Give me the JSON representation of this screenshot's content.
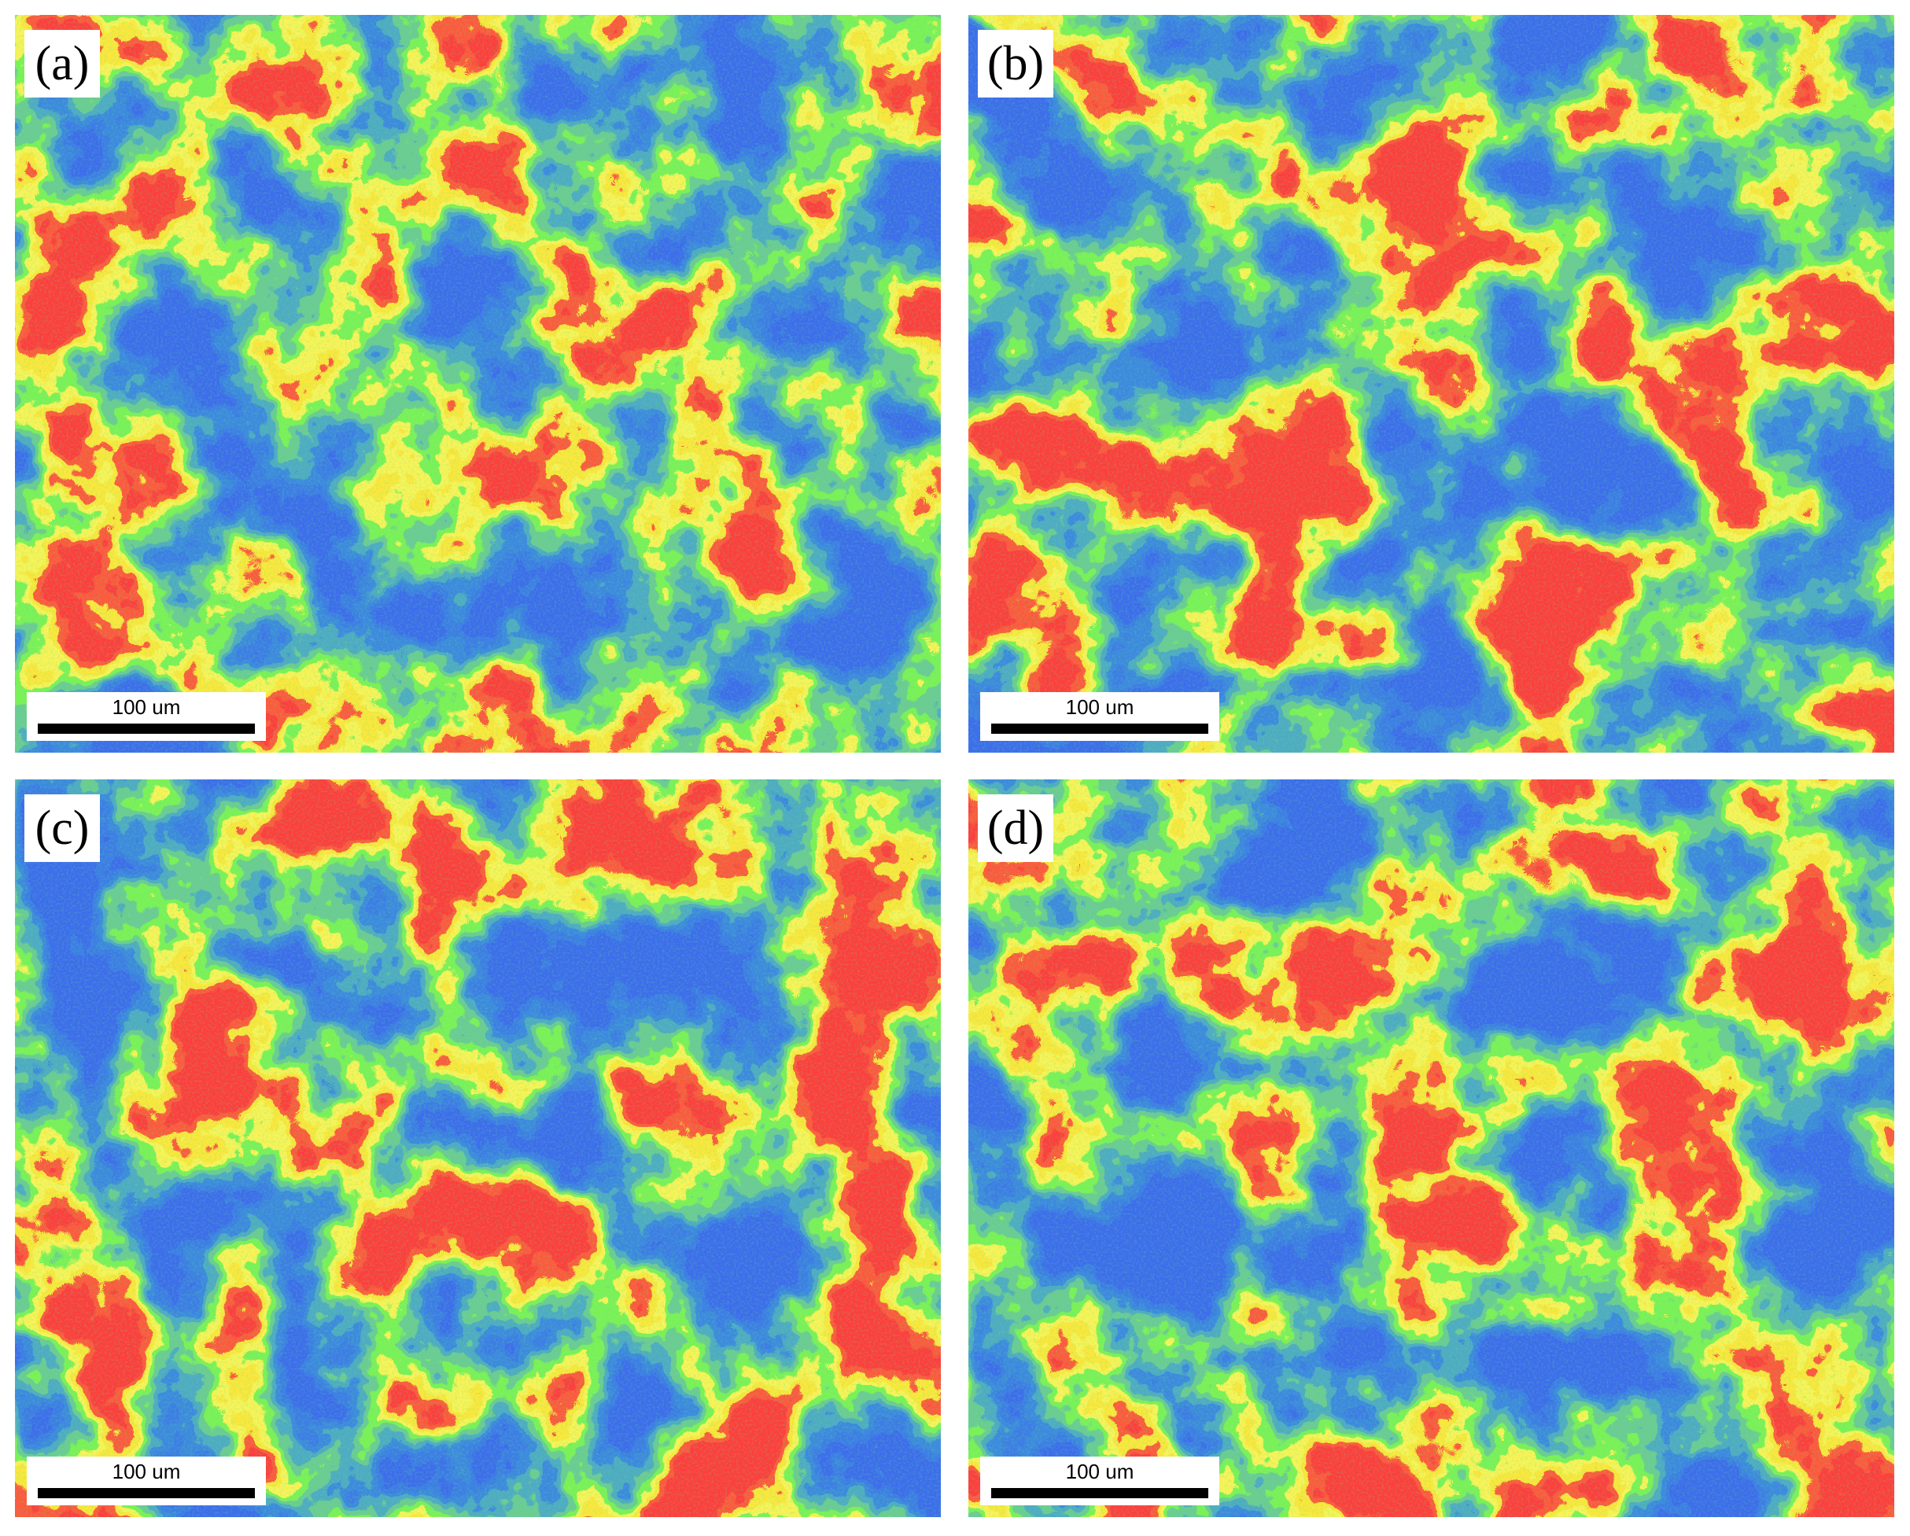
{
  "panels": [
    {
      "label": "(a)",
      "scale_bar": "100 um"
    },
    {
      "label": "(b)",
      "scale_bar": "100 um"
    },
    {
      "label": "(c)",
      "scale_bar": "100 um"
    },
    {
      "label": "(d)",
      "scale_bar": "100 um"
    }
  ]
}
